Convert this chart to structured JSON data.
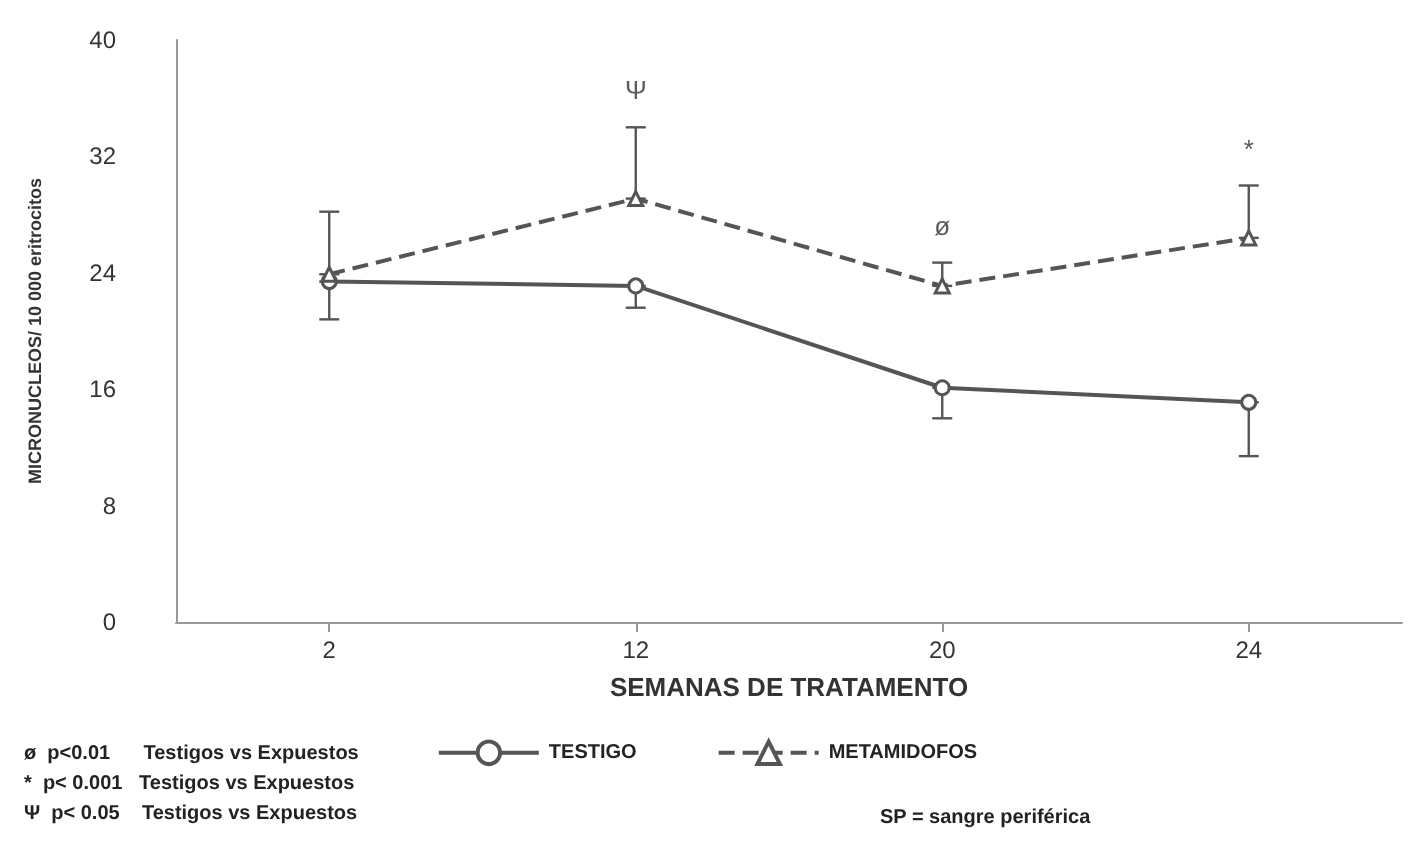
{
  "chart_data": {
    "type": "line",
    "xlabel": "SEMANAS DE TRATAMENTO",
    "ylabel": "MICRONUCLEOS/ 10 000 eritrocitos",
    "categories": [
      "2",
      "12",
      "20",
      "24"
    ],
    "series": [
      {
        "name": "TESTIGO",
        "color": "#555555",
        "marker": "circle",
        "line_style": "solid",
        "values": [
          23.4,
          23.1,
          16.1,
          15.1
        ],
        "errors": [
          [
            20.8,
            23.4
          ],
          [
            21.6,
            23.1
          ],
          [
            14.0,
            16.1
          ],
          [
            11.4,
            15.1
          ]
        ]
      },
      {
        "name": "METAMIDOFOS",
        "color": "#555555",
        "marker": "triangle",
        "line_style": "dashed",
        "values": [
          23.9,
          29.1,
          23.1,
          26.4
        ],
        "errors": [
          [
            23.9,
            28.2
          ],
          [
            29.1,
            34.0
          ],
          [
            23.1,
            24.7
          ],
          [
            26.4,
            30.0
          ]
        ]
      }
    ],
    "ylim": [
      0,
      40
    ],
    "yticks": [
      0,
      8,
      16,
      24,
      32,
      40
    ],
    "grid": false,
    "legend": "bottom",
    "annotations": [
      {
        "text": "Ψ",
        "x": "12",
        "y": 34.0
      },
      {
        "text": "ø",
        "x": "20",
        "y": 24.7
      },
      {
        "text": "*",
        "x": "24",
        "y": 30.0
      },
      "ø  p<0.01      Testigos vs Expuestos",
      "*  p< 0.001   Testigos vs Expuestos",
      "Ψ  p< 0.05    Testigos vs Expuestos",
      "SP = sangre periférica"
    ]
  }
}
